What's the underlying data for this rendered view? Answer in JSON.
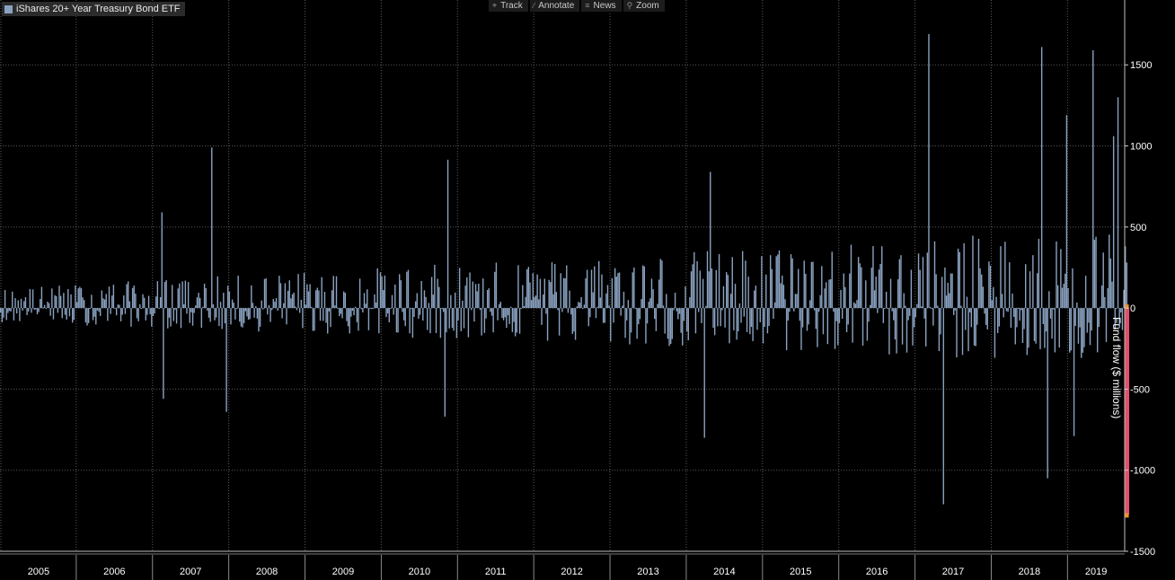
{
  "toolbar": {
    "buttons": [
      {
        "label": "Track",
        "icon": "crosshair-icon"
      },
      {
        "label": "Annotate",
        "icon": "pencil-icon"
      },
      {
        "label": "News",
        "icon": "list-icon"
      },
      {
        "label": "Zoom",
        "icon": "magnifier-icon"
      }
    ]
  },
  "colors": {
    "bar": "#8aa2c0",
    "highlight": "#e0506a",
    "marker": "#f0902a",
    "grid": "#5a5a5a",
    "background": "#000000"
  },
  "chart_data": {
    "type": "bar",
    "title": "",
    "legend": [
      {
        "name": "iShares 20+ Year Treasury Bond ETF",
        "color": "#8aa2c0"
      }
    ],
    "xlabel": "",
    "ylabel": "Fund flow ($ millions)",
    "ylim": [
      -1500,
      1900
    ],
    "yticks": [
      1500,
      1000,
      500,
      0,
      -500,
      -1000,
      -1500
    ],
    "y_axis_side": "right",
    "x_range_years": [
      2005,
      2019.75
    ],
    "x_tick_labels": [
      "2005",
      "2006",
      "2007",
      "2008",
      "2009",
      "2010",
      "2011",
      "2012",
      "2013",
      "2014",
      "2015",
      "2016",
      "2017",
      "2018",
      "2019"
    ],
    "grid": "dotted",
    "notable_flows": [
      {
        "x": 2007.11,
        "y": 590
      },
      {
        "x": 2007.14,
        "y": -560
      },
      {
        "x": 2007.76,
        "y": 990
      },
      {
        "x": 2007.97,
        "y": -640
      },
      {
        "x": 2010.86,
        "y": 915
      },
      {
        "x": 2010.83,
        "y": -670
      },
      {
        "x": 2014.31,
        "y": 840
      },
      {
        "x": 2014.24,
        "y": -800
      },
      {
        "x": 2017.18,
        "y": 1690
      },
      {
        "x": 2017.36,
        "y": -1210
      },
      {
        "x": 2018.65,
        "y": 1610
      },
      {
        "x": 2018.73,
        "y": -1050
      },
      {
        "x": 2018.98,
        "y": 1190
      },
      {
        "x": 2019.08,
        "y": -790
      },
      {
        "x": 2019.33,
        "y": 1590
      },
      {
        "x": 2019.6,
        "y": 1060
      },
      {
        "x": 2019.66,
        "y": 1300
      }
    ],
    "typical_weekly_range": [
      -350,
      500
    ],
    "latest": {
      "x": 2019.78,
      "y": -1270,
      "highlighted": true
    }
  }
}
